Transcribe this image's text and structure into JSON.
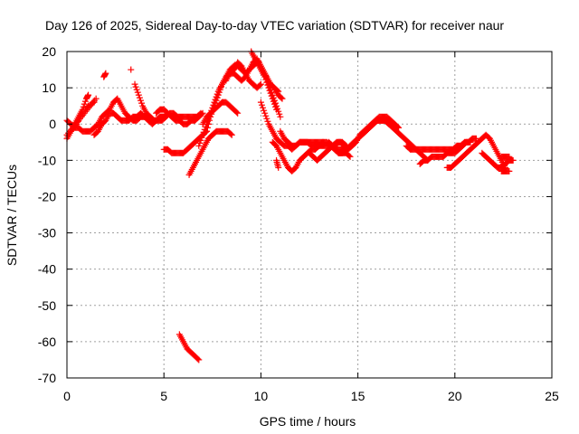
{
  "chart_data": {
    "type": "scatter",
    "title": "Day 126 of 2025, Sidereal Day-to-day VTEC variation (SDTVAR) for receiver naur",
    "xlabel": "GPS time / hours",
    "ylabel": "SDTVAR / TECUs",
    "xlim": [
      0,
      25
    ],
    "ylim": [
      -70,
      20
    ],
    "x_ticks": [
      0,
      5,
      10,
      15,
      20,
      25
    ],
    "y_ticks": [
      20,
      10,
      0,
      -10,
      -20,
      -30,
      -40,
      -50,
      -60,
      -70
    ],
    "grid": true,
    "marker": "+",
    "color": "#ff0000",
    "series": [
      {
        "name": "s1",
        "x": [
          0.0,
          0.2,
          0.4,
          0.6,
          0.8,
          1.0,
          1.1
        ],
        "y": [
          -4,
          -2,
          0,
          2,
          4,
          7,
          8
        ]
      },
      {
        "name": "s2",
        "x": [
          0.0,
          0.3,
          0.6,
          0.9,
          1.2,
          1.5
        ],
        "y": [
          -3,
          -1,
          1,
          3,
          5,
          7
        ]
      },
      {
        "name": "s3",
        "x": [
          0.2,
          0.5,
          0.8,
          1.1,
          1.4
        ],
        "y": [
          -2,
          0,
          3,
          5,
          6
        ]
      },
      {
        "name": "s4",
        "x": [
          0.0,
          0.2,
          0.4,
          0.6,
          0.8,
          1.0,
          1.2,
          1.4,
          1.6,
          1.8,
          2.0,
          2.2,
          2.4,
          2.6,
          2.8,
          3.0,
          3.2,
          3.4,
          3.6,
          3.8,
          4.0,
          4.2,
          4.4,
          4.6,
          4.8,
          5.0,
          5.2
        ],
        "y": [
          1,
          0,
          -1,
          -1,
          -2,
          -2,
          -2,
          -1,
          0,
          2,
          3,
          4,
          6,
          7,
          5,
          3,
          2,
          1,
          1,
          2,
          2,
          2,
          1,
          1,
          2,
          2,
          3
        ]
      },
      {
        "name": "s5",
        "x": [
          1.4,
          1.6,
          1.8,
          2.0,
          2.2,
          2.4,
          2.6,
          2.8,
          3.0,
          3.2,
          3.4,
          3.6,
          3.8,
          4.0,
          4.2,
          4.4,
          4.6,
          4.8,
          5.0
        ],
        "y": [
          -3,
          -2,
          0,
          1,
          3,
          3,
          2,
          1,
          1,
          1,
          2,
          2,
          3,
          2,
          1,
          0,
          1,
          2,
          2
        ]
      },
      {
        "name": "s6",
        "x": [
          1.9,
          2.0
        ],
        "y": [
          13,
          14
        ]
      },
      {
        "name": "s7",
        "x": [
          3.3
        ],
        "y": [
          15
        ]
      },
      {
        "name": "s8",
        "x": [
          3.5,
          3.7,
          3.9,
          4.1,
          4.3,
          4.5,
          4.7,
          4.9,
          5.1,
          5.3,
          5.5,
          5.7,
          5.9,
          6.1,
          6.3,
          6.5,
          6.7,
          6.9
        ],
        "y": [
          11,
          8,
          5,
          3,
          2,
          1,
          1,
          1,
          2,
          3,
          3,
          2,
          2,
          2,
          2,
          2,
          2,
          3
        ]
      },
      {
        "name": "s9",
        "x": [
          4.6,
          4.8,
          5.0,
          5.2,
          5.4,
          5.6,
          5.8,
          6.0,
          6.2,
          6.4,
          6.6,
          6.8,
          7.0
        ],
        "y": [
          3,
          4,
          4,
          3,
          2,
          1,
          1,
          0,
          0,
          1,
          1,
          2,
          3
        ]
      },
      {
        "name": "s10",
        "x": [
          5.0,
          5.2,
          5.4,
          5.6,
          5.8,
          6.0,
          6.2,
          6.4,
          6.6,
          6.8,
          7.0,
          7.2
        ],
        "y": [
          -7,
          -7,
          -8,
          -8,
          -8,
          -8,
          -7,
          -6,
          -5,
          -4,
          -3,
          -2
        ]
      },
      {
        "name": "s11",
        "x": [
          6.3,
          6.5,
          6.7,
          6.9,
          7.1,
          7.3,
          7.5,
          7.7,
          7.9,
          8.1,
          8.3,
          8.5
        ],
        "y": [
          -14,
          -12,
          -10,
          -8,
          -6,
          -4,
          -3,
          -2,
          -2,
          -2,
          -2,
          -3
        ]
      },
      {
        "name": "s12",
        "x": [
          5.8,
          6.0,
          6.2,
          6.4,
          6.6,
          6.8
        ],
        "y": [
          -58,
          -60,
          -62,
          -63,
          -64,
          -65
        ]
      },
      {
        "name": "s13",
        "x": [
          6.8,
          7.0,
          7.2,
          7.4,
          7.6,
          7.8,
          8.0,
          8.2,
          8.4,
          8.6,
          8.8,
          9.0,
          9.2,
          9.4,
          9.6,
          9.8,
          10.0,
          10.2,
          10.4,
          10.6,
          10.8,
          11.0
        ],
        "y": [
          -6,
          -3,
          0,
          3,
          6,
          9,
          11,
          13,
          14,
          14,
          13,
          12,
          13,
          15,
          17,
          18,
          16,
          14,
          11,
          8,
          5,
          2
        ]
      },
      {
        "name": "s14",
        "x": [
          7.2,
          7.4,
          7.6,
          7.8,
          8.0,
          8.2,
          8.4,
          8.6,
          8.8,
          9.0,
          9.2,
          9.4,
          9.6,
          9.8,
          10.0,
          10.2,
          10.4,
          10.6,
          10.8
        ],
        "y": [
          -2,
          2,
          5,
          8,
          11,
          13,
          15,
          16,
          16,
          15,
          14,
          15,
          16,
          17,
          15,
          13,
          10,
          7,
          4
        ]
      },
      {
        "name": "s15",
        "x": [
          7.0,
          7.2,
          7.4,
          7.6,
          7.8,
          8.0,
          8.2,
          8.4,
          8.6,
          8.8
        ],
        "y": [
          0,
          2,
          3,
          4,
          5,
          6,
          6,
          5,
          4,
          3
        ]
      },
      {
        "name": "s16",
        "x": [
          8.2,
          8.4,
          8.6,
          8.8,
          9.0,
          9.2,
          9.4,
          9.6,
          9.8,
          10.0
        ],
        "y": [
          12,
          14,
          15,
          17,
          16,
          14,
          12,
          11,
          10,
          11
        ]
      },
      {
        "name": "s17",
        "x": [
          9.5,
          9.7,
          9.9,
          10.1,
          10.3,
          10.5,
          10.7,
          10.9
        ],
        "y": [
          20,
          18,
          17,
          15,
          13,
          11,
          10,
          9
        ]
      },
      {
        "name": "s18",
        "x": [
          10.5,
          10.7,
          10.9,
          11.1
        ],
        "y": [
          11,
          10,
          8,
          7
        ]
      },
      {
        "name": "s19",
        "x": [
          10.0,
          10.2,
          10.4,
          10.6,
          10.8,
          11.0,
          11.2,
          11.4,
          11.6,
          11.8,
          12.0,
          12.2,
          12.4,
          12.6,
          12.8,
          13.0,
          13.2,
          13.4,
          13.6,
          13.8,
          14.0,
          14.2,
          14.4
        ],
        "y": [
          6,
          3,
          0,
          -2,
          -4,
          -5,
          -6,
          -6,
          -7,
          -6,
          -5,
          -5,
          -5,
          -5,
          -5,
          -5,
          -5,
          -5,
          -6,
          -6,
          -5,
          -5,
          -6
        ]
      },
      {
        "name": "s20",
        "x": [
          10.6,
          10.8,
          11.0,
          11.2,
          11.4,
          11.6,
          11.8,
          12.0,
          12.2,
          12.4,
          12.6,
          12.8,
          13.0,
          13.2,
          13.4,
          13.6,
          13.8,
          14.0,
          14.2,
          14.4,
          14.6
        ],
        "y": [
          -5,
          -6,
          -8,
          -10,
          -12,
          -13,
          -12,
          -10,
          -9,
          -8,
          -7,
          -7,
          -6,
          -6,
          -6,
          -6,
          -7,
          -8,
          -8,
          -8,
          -9
        ]
      },
      {
        "name": "s21",
        "x": [
          11.0,
          11.2,
          11.4,
          11.6,
          11.8,
          12.0,
          12.2,
          12.4,
          12.6,
          12.8,
          13.0,
          13.2
        ],
        "y": [
          -2,
          -4,
          -5,
          -6,
          -6,
          -5,
          -5,
          -5,
          -6,
          -6,
          -6,
          -5
        ]
      },
      {
        "name": "s22",
        "x": [
          10.8,
          10.9
        ],
        "y": [
          -10,
          -12
        ]
      },
      {
        "name": "s23",
        "x": [
          12.5,
          12.7,
          12.9,
          13.1,
          13.3,
          13.5,
          13.7,
          13.9,
          14.1,
          14.3
        ],
        "y": [
          -8,
          -9,
          -10,
          -9,
          -8,
          -7,
          -6,
          -5,
          -5,
          -6
        ]
      },
      {
        "name": "s24",
        "x": [
          13.5,
          13.7,
          13.9,
          14.1,
          14.3,
          14.5,
          14.7,
          14.9,
          15.1,
          15.3,
          15.5,
          15.7,
          15.9,
          16.1,
          16.3,
          16.5,
          16.7,
          16.9,
          17.1
        ],
        "y": [
          -5,
          -6,
          -7,
          -7,
          -7,
          -7,
          -6,
          -5,
          -3,
          -2,
          -1,
          0,
          1,
          2,
          2,
          2,
          1,
          0,
          -1
        ]
      },
      {
        "name": "s25",
        "x": [
          14.0,
          14.2,
          14.4,
          14.6,
          14.8,
          15.0,
          15.2,
          15.4,
          15.6,
          15.8,
          16.0,
          16.2,
          16.4,
          16.6
        ],
        "y": [
          -8,
          -8,
          -7,
          -6,
          -5,
          -4,
          -3,
          -2,
          -1,
          0,
          1,
          1,
          1,
          0
        ]
      },
      {
        "name": "s26",
        "x": [
          14.6,
          14.8,
          15.0,
          15.2,
          15.4,
          15.6,
          15.8,
          16.0,
          16.2,
          16.4,
          16.6,
          16.8,
          17.0,
          17.2,
          17.4,
          17.6,
          17.8,
          18.0,
          18.2,
          18.4,
          18.6
        ],
        "y": [
          -6,
          -5,
          -4,
          -3,
          -2,
          -1,
          0,
          1,
          1,
          1,
          0,
          -1,
          -2,
          -3,
          -4,
          -5,
          -6,
          -7,
          -8,
          -9,
          -10
        ]
      },
      {
        "name": "s27",
        "x": [
          17.5,
          17.7,
          17.9,
          18.1,
          18.3,
          18.5,
          18.7,
          18.9,
          19.1,
          19.3,
          19.5,
          19.7,
          19.9,
          20.1,
          20.3,
          20.5,
          20.7,
          20.9,
          21.1
        ],
        "y": [
          -6,
          -7,
          -7,
          -7,
          -7,
          -7,
          -7,
          -7,
          -7,
          -7,
          -7,
          -7,
          -7,
          -6,
          -6,
          -5,
          -5,
          -4,
          -4
        ]
      },
      {
        "name": "s28",
        "x": [
          18.2,
          18.4,
          18.6,
          18.8,
          19.0,
          19.2,
          19.4,
          19.6,
          19.8,
          20.0,
          20.2,
          20.4,
          20.6,
          20.8
        ],
        "y": [
          -11,
          -10,
          -10,
          -9,
          -9,
          -9,
          -9,
          -8,
          -8,
          -8,
          -7,
          -6,
          -5,
          -5
        ]
      },
      {
        "name": "s29",
        "x": [
          19.6,
          19.8,
          20.0,
          20.2,
          20.4,
          20.6,
          20.8,
          21.0,
          21.2,
          21.4,
          21.6,
          21.8,
          22.0,
          22.2,
          22.4,
          22.6
        ],
        "y": [
          -12,
          -12,
          -11,
          -10,
          -9,
          -8,
          -7,
          -6,
          -5,
          -4,
          -3,
          -4,
          -6,
          -8,
          -10,
          -12
        ]
      },
      {
        "name": "s30",
        "x": [
          21.4,
          21.6,
          21.8,
          22.0,
          22.2,
          22.4,
          22.6,
          22.8,
          23.0
        ],
        "y": [
          -8,
          -9,
          -10,
          -11,
          -12,
          -12,
          -11,
          -10,
          -10
        ]
      },
      {
        "name": "s31",
        "x": [
          22.4,
          22.6,
          22.8,
          22.4,
          22.6,
          22.8
        ],
        "y": [
          -9,
          -9,
          -9,
          -13,
          -13,
          -13
        ]
      }
    ]
  }
}
